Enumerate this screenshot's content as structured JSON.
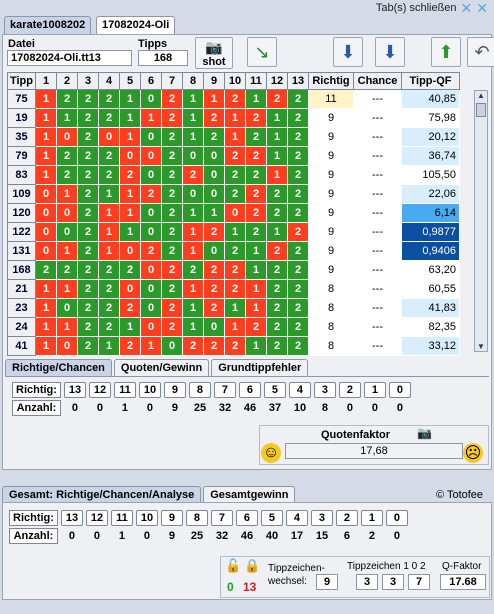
{
  "tabs": [
    "karate1008202",
    "17082024-Oli"
  ],
  "close_tabs": "Tab(s) schließen",
  "datei_label": "Datei",
  "datei_value": "17082024-Oli.tt13",
  "tipps_label": "Tipps",
  "tipps_value": "168",
  "shot_label": "shot",
  "headers": [
    "Tipp",
    "1",
    "2",
    "3",
    "4",
    "5",
    "6",
    "7",
    "8",
    "9",
    "10",
    "11",
    "12",
    "13",
    "Richtig",
    "Chance",
    "Tipp-QF"
  ],
  "rows": [
    {
      "tipp": "75",
      "v": [
        "1",
        "2",
        "2",
        "2",
        "1",
        "0",
        "2",
        "1",
        "1",
        "2",
        "1",
        "2",
        "2"
      ],
      "c": "rgggggrgrrgrg",
      "richtig": "11",
      "chance": "---",
      "qf": "40,85",
      "qfs": "l",
      "hl": true
    },
    {
      "tipp": "19",
      "v": [
        "1",
        "1",
        "2",
        "2",
        "1",
        "1",
        "2",
        "1",
        "2",
        "1",
        "2",
        "1",
        "2"
      ],
      "c": "rggggrrgrrrgg",
      "richtig": "9",
      "chance": "---",
      "qf": "75,98",
      "qfs": "n"
    },
    {
      "tipp": "35",
      "v": [
        "1",
        "0",
        "2",
        "0",
        "1",
        "0",
        "2",
        "1",
        "2",
        "1",
        "2",
        "1",
        "2"
      ],
      "c": "rrgrrggggrggg",
      "richtig": "9",
      "chance": "---",
      "qf": "20,12",
      "qfs": "l"
    },
    {
      "tipp": "79",
      "v": [
        "1",
        "2",
        "2",
        "2",
        "0",
        "0",
        "2",
        "0",
        "0",
        "2",
        "2",
        "1",
        "2"
      ],
      "c": "rgggrrgggrrgg",
      "richtig": "9",
      "chance": "---",
      "qf": "36,74",
      "qfs": "l"
    },
    {
      "tipp": "83",
      "v": [
        "1",
        "2",
        "2",
        "2",
        "2",
        "0",
        "2",
        "2",
        "0",
        "2",
        "2",
        "1",
        "2"
      ],
      "c": "rgggrggrgggrg",
      "richtig": "9",
      "chance": "---",
      "qf": "105,50",
      "qfs": "n"
    },
    {
      "tipp": "109",
      "v": [
        "0",
        "1",
        "2",
        "1",
        "1",
        "2",
        "2",
        "0",
        "0",
        "2",
        "2",
        "2",
        "2"
      ],
      "c": "rrggrrggggrgg",
      "richtig": "9",
      "chance": "---",
      "qf": "22,06",
      "qfs": "l"
    },
    {
      "tipp": "120",
      "v": [
        "0",
        "0",
        "2",
        "1",
        "1",
        "0",
        "2",
        "1",
        "1",
        "0",
        "2",
        "2",
        "2"
      ],
      "c": "rrgrrggggrrgg",
      "richtig": "9",
      "chance": "---",
      "qf": "6,14",
      "qfs": "m"
    },
    {
      "tipp": "122",
      "v": [
        "0",
        "0",
        "2",
        "1",
        "1",
        "0",
        "2",
        "1",
        "2",
        "1",
        "2",
        "1",
        "2"
      ],
      "c": "rggrgggrrgggr",
      "richtig": "9",
      "chance": "---",
      "qf": "0,9877",
      "qfs": "d"
    },
    {
      "tipp": "131",
      "v": [
        "0",
        "1",
        "2",
        "1",
        "0",
        "2",
        "2",
        "1",
        "0",
        "2",
        "1",
        "2",
        "2"
      ],
      "c": "rrgrrrgrgggrg",
      "richtig": "9",
      "chance": "---",
      "qf": "0,9406",
      "qfs": "d"
    },
    {
      "tipp": "168",
      "v": [
        "2",
        "2",
        "2",
        "2",
        "2",
        "0",
        "2",
        "2",
        "2",
        "2",
        "1",
        "2",
        "2"
      ],
      "c": "gggggrrgrrggg",
      "richtig": "9",
      "chance": "---",
      "qf": "63,20",
      "qfs": "n"
    },
    {
      "tipp": "21",
      "v": [
        "1",
        "1",
        "2",
        "2",
        "0",
        "0",
        "2",
        "1",
        "2",
        "2",
        "1",
        "2",
        "2"
      ],
      "c": "rrggrggrrrrgg",
      "richtig": "8",
      "chance": "---",
      "qf": "60,55",
      "qfs": "n"
    },
    {
      "tipp": "23",
      "v": [
        "1",
        "0",
        "2",
        "2",
        "2",
        "0",
        "2",
        "1",
        "2",
        "1",
        "1",
        "2",
        "2"
      ],
      "c": "rgggrgrgrgrgg",
      "richtig": "8",
      "chance": "---",
      "qf": "41,83",
      "qfs": "l"
    },
    {
      "tipp": "24",
      "v": [
        "1",
        "1",
        "2",
        "2",
        "1",
        "0",
        "2",
        "1",
        "0",
        "1",
        "2",
        "2",
        "2"
      ],
      "c": "rrgggrrggrrgg",
      "richtig": "8",
      "chance": "---",
      "qf": "82,35",
      "qfs": "n"
    },
    {
      "tipp": "41",
      "v": [
        "1",
        "0",
        "2",
        "1",
        "2",
        "1",
        "0",
        "2",
        "2",
        "2",
        "1",
        "2",
        "2"
      ],
      "c": "rrggrrgrrrggg",
      "richtig": "8",
      "chance": "---",
      "qf": "33,12",
      "qfs": "l"
    }
  ],
  "subtabs1": [
    "Richtige/Chancen",
    "Quoten/Gewinn",
    "Grundtippfehler"
  ],
  "richtig_label": "Richtig:",
  "anzahl_label": "Anzahl:",
  "richtig_vals": [
    "13",
    "12",
    "11",
    "10",
    "9",
    "8",
    "7",
    "6",
    "5",
    "4",
    "3",
    "2",
    "1",
    "0"
  ],
  "anzahl1": [
    "0",
    "0",
    "1",
    "0",
    "9",
    "25",
    "32",
    "46",
    "37",
    "10",
    "8",
    "0",
    "0",
    "0"
  ],
  "quotenfaktor_label": "Quotenfaktor",
  "quotenfaktor_value": "17,68",
  "subtabs2": [
    "Gesamt: Richtige/Chancen/Analyse",
    "Gesamtgewinn"
  ],
  "copyright": "© Totofee",
  "anzahl2": [
    "0",
    "0",
    "1",
    "0",
    "9",
    "25",
    "32",
    "46",
    "40",
    "17",
    "15",
    "6",
    "2",
    "0"
  ],
  "lock_green": "0",
  "lock_red": "13",
  "tippzeichen_label": "Tippzeichen-\nwechsel:",
  "tippzeichen_value": "9",
  "tz102_label": "Tippzeichen 1 0 2",
  "tz102_vals": [
    "3",
    "3",
    "7"
  ],
  "qfaktor_label": "Q-Faktor",
  "qfaktor_value": "17.68"
}
